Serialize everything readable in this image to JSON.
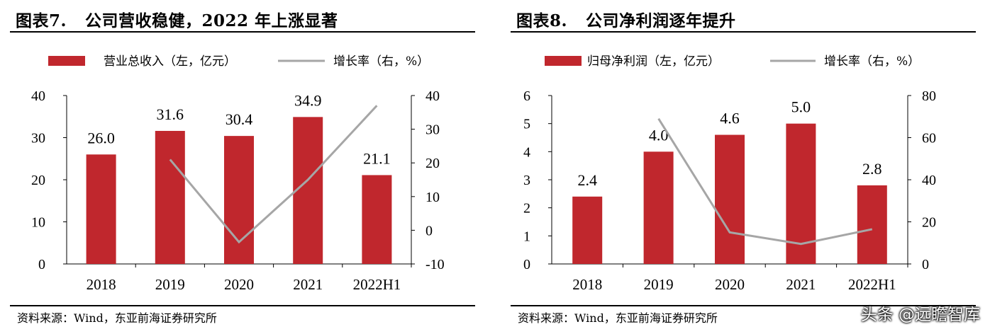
{
  "panels": [
    {
      "title_num": "图表7.",
      "title_text": "公司营收稳健，2022 年上涨显著",
      "source": "资料来源：Wind，东亚前海证券研究所",
      "legend_bar": "营业总收入（左，亿元）",
      "legend_line": "增长率（右，%）"
    },
    {
      "title_num": "图表8.",
      "title_text": "公司净利润逐年提升",
      "source": "资料来源：Wind，东亚前海证券研究所",
      "legend_bar": "归母净利润（左，亿元）",
      "legend_line": "增长率（右，%）"
    }
  ],
  "watermark": "头条 @远瞻智库",
  "colors": {
    "bar": "#c0272d",
    "line": "#a6a6a6",
    "axis": "#000000"
  },
  "chart_data": [
    {
      "type": "bar",
      "categories": [
        "2018",
        "2019",
        "2020",
        "2021",
        "2022H1"
      ],
      "series": [
        {
          "name": "营业总收入（左，亿元）",
          "type": "bar",
          "axis": "left",
          "values": [
            26.0,
            31.6,
            30.4,
            34.9,
            21.1
          ],
          "labels": [
            "26.0",
            "31.6",
            "30.4",
            "34.9",
            "21.1"
          ]
        },
        {
          "name": "增长率（右，%）",
          "type": "line",
          "axis": "right",
          "values": [
            null,
            21.0,
            -3.5,
            15.0,
            37.0
          ]
        }
      ],
      "ylim_left": [
        0,
        40
      ],
      "yticks_left": [
        0,
        10,
        20,
        30,
        40
      ],
      "ylim_right": [
        -10,
        40
      ],
      "yticks_right": [
        -10,
        0,
        10,
        20,
        30,
        40
      ],
      "legend": "top"
    },
    {
      "type": "bar",
      "categories": [
        "2018",
        "2019",
        "2020",
        "2021",
        "2022H1"
      ],
      "series": [
        {
          "name": "归母净利润（左，亿元）",
          "type": "bar",
          "axis": "left",
          "values": [
            2.4,
            4.0,
            4.6,
            5.0,
            2.8
          ],
          "labels": [
            "2.4",
            "4.0",
            "4.6",
            "5.0",
            "2.8"
          ]
        },
        {
          "name": "增长率（右，%）",
          "type": "line",
          "axis": "right",
          "values": [
            null,
            69.0,
            15.0,
            9.5,
            16.5
          ]
        }
      ],
      "ylim_left": [
        0,
        6
      ],
      "yticks_left": [
        0,
        1,
        2,
        3,
        4,
        5,
        6
      ],
      "ylim_right": [
        0,
        80
      ],
      "yticks_right": [
        0,
        20,
        40,
        60,
        80
      ],
      "legend": "top"
    }
  ]
}
